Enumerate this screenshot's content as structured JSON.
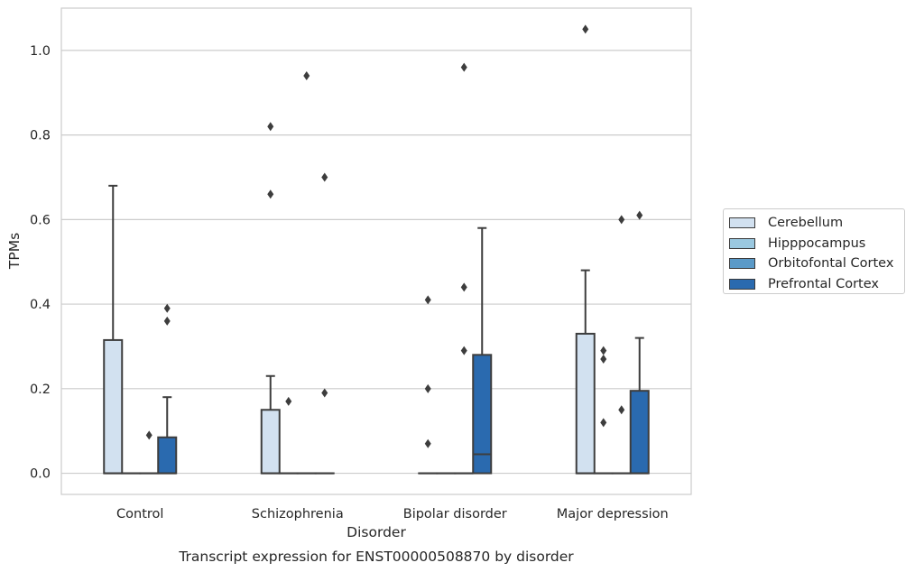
{
  "chart_data": {
    "type": "boxplot",
    "caption": "Transcript expression for ENST00000508870 by disorder",
    "xlabel": "Disorder",
    "ylabel": "TPMs",
    "ylim": [
      -0.05,
      1.1
    ],
    "yticks": [
      0.0,
      0.2,
      0.4,
      0.6,
      0.8,
      1.0
    ],
    "ytick_labels": [
      "0.0",
      "0.2",
      "0.4",
      "0.6",
      "0.8",
      "1.0"
    ],
    "grid": "horizontal",
    "legend_position": "right",
    "categories": [
      "Control",
      "Schizophrenia",
      "Bipolar disorder",
      "Major depression"
    ],
    "series": [
      {
        "name": "Cerebellum",
        "color": "#d2e1f0",
        "boxes": [
          {
            "q1": 0.0,
            "median": 0.0,
            "q3": 0.315,
            "whisker_low": 0.0,
            "whisker_high": 0.68,
            "outliers": []
          },
          {
            "q1": 0.0,
            "median": 0.0,
            "q3": 0.15,
            "whisker_low": 0.0,
            "whisker_high": 0.23,
            "outliers": [
              0.66,
              0.82
            ]
          },
          {
            "q1": 0.0,
            "median": 0.0,
            "q3": 0.0,
            "whisker_low": 0.0,
            "whisker_high": 0.0,
            "outliers": [
              0.07,
              0.2,
              0.41
            ]
          },
          {
            "q1": 0.0,
            "median": 0.0,
            "q3": 0.33,
            "whisker_low": 0.0,
            "whisker_high": 0.48,
            "outliers": [
              1.05
            ]
          }
        ]
      },
      {
        "name": "Hipppocampus",
        "color": "#9ac8e0",
        "boxes": [
          {
            "q1": 0.0,
            "median": 0.0,
            "q3": 0.0,
            "whisker_low": 0.0,
            "whisker_high": 0.0,
            "outliers": []
          },
          {
            "q1": 0.0,
            "median": 0.0,
            "q3": 0.0,
            "whisker_low": 0.0,
            "whisker_high": 0.0,
            "outliers": [
              0.17
            ]
          },
          {
            "q1": 0.0,
            "median": 0.0,
            "q3": 0.0,
            "whisker_low": 0.0,
            "whisker_high": 0.0,
            "outliers": []
          },
          {
            "q1": 0.0,
            "median": 0.0,
            "q3": 0.0,
            "whisker_low": 0.0,
            "whisker_high": 0.0,
            "outliers": [
              0.12,
              0.27,
              0.29
            ]
          }
        ]
      },
      {
        "name": "Orbitofontal Cortex",
        "color": "#5b9ac8",
        "boxes": [
          {
            "q1": 0.0,
            "median": 0.0,
            "q3": 0.0,
            "whisker_low": 0.0,
            "whisker_high": 0.0,
            "outliers": [
              0.09
            ]
          },
          {
            "q1": 0.0,
            "median": 0.0,
            "q3": 0.0,
            "whisker_low": 0.0,
            "whisker_high": 0.0,
            "outliers": [
              0.94
            ]
          },
          {
            "q1": 0.0,
            "median": 0.0,
            "q3": 0.0,
            "whisker_low": 0.0,
            "whisker_high": 0.0,
            "outliers": [
              0.29,
              0.44,
              0.96
            ]
          },
          {
            "q1": 0.0,
            "median": 0.0,
            "q3": 0.0,
            "whisker_low": 0.0,
            "whisker_high": 0.0,
            "outliers": [
              0.15,
              0.6
            ]
          }
        ]
      },
      {
        "name": "Prefrontal Cortex",
        "color": "#2a6aaf",
        "boxes": [
          {
            "q1": 0.0,
            "median": 0.0,
            "q3": 0.085,
            "whisker_low": 0.0,
            "whisker_high": 0.18,
            "outliers": [
              0.36,
              0.39
            ]
          },
          {
            "q1": 0.0,
            "median": 0.0,
            "q3": 0.0,
            "whisker_low": 0.0,
            "whisker_high": 0.0,
            "outliers": [
              0.19,
              0.7
            ]
          },
          {
            "q1": 0.0,
            "median": 0.045,
            "q3": 0.28,
            "whisker_low": 0.0,
            "whisker_high": 0.58,
            "outliers": []
          },
          {
            "q1": 0.0,
            "median": 0.0,
            "q3": 0.195,
            "whisker_low": 0.0,
            "whisker_high": 0.32,
            "outliers": [
              0.61
            ]
          }
        ]
      }
    ]
  }
}
